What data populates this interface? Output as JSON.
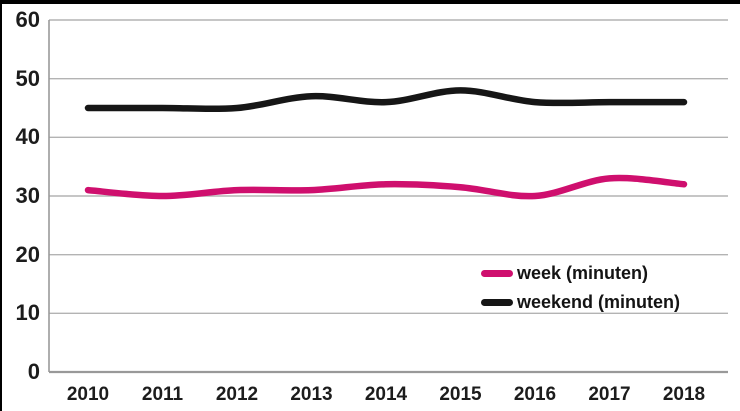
{
  "chart_data": {
    "type": "line",
    "title": "",
    "xlabel": "",
    "ylabel": "",
    "categories": [
      "2010",
      "2011",
      "2012",
      "2013",
      "2014",
      "2015",
      "2016",
      "2017",
      "2018"
    ],
    "series": [
      {
        "name": "week (minuten)",
        "color": "#cf0f6e",
        "values": [
          31,
          30,
          31,
          31,
          32,
          31.5,
          30,
          33,
          32
        ]
      },
      {
        "name": "weekend (minuten)",
        "color": "#161616",
        "values": [
          45,
          45,
          45,
          47,
          46,
          48,
          46,
          46,
          46
        ]
      }
    ],
    "ylim": [
      0,
      60
    ],
    "yticks": [
      0,
      10,
      20,
      30,
      40,
      50,
      60
    ],
    "grid": "horizontal-gridlines",
    "legend_position": "inside-middle-right",
    "colors": {
      "gridline": "#b3b3b3",
      "axis": "#999999",
      "tick_text": "#1c1c1c",
      "frame_bars": "#000000",
      "background": "#ffffff"
    }
  }
}
